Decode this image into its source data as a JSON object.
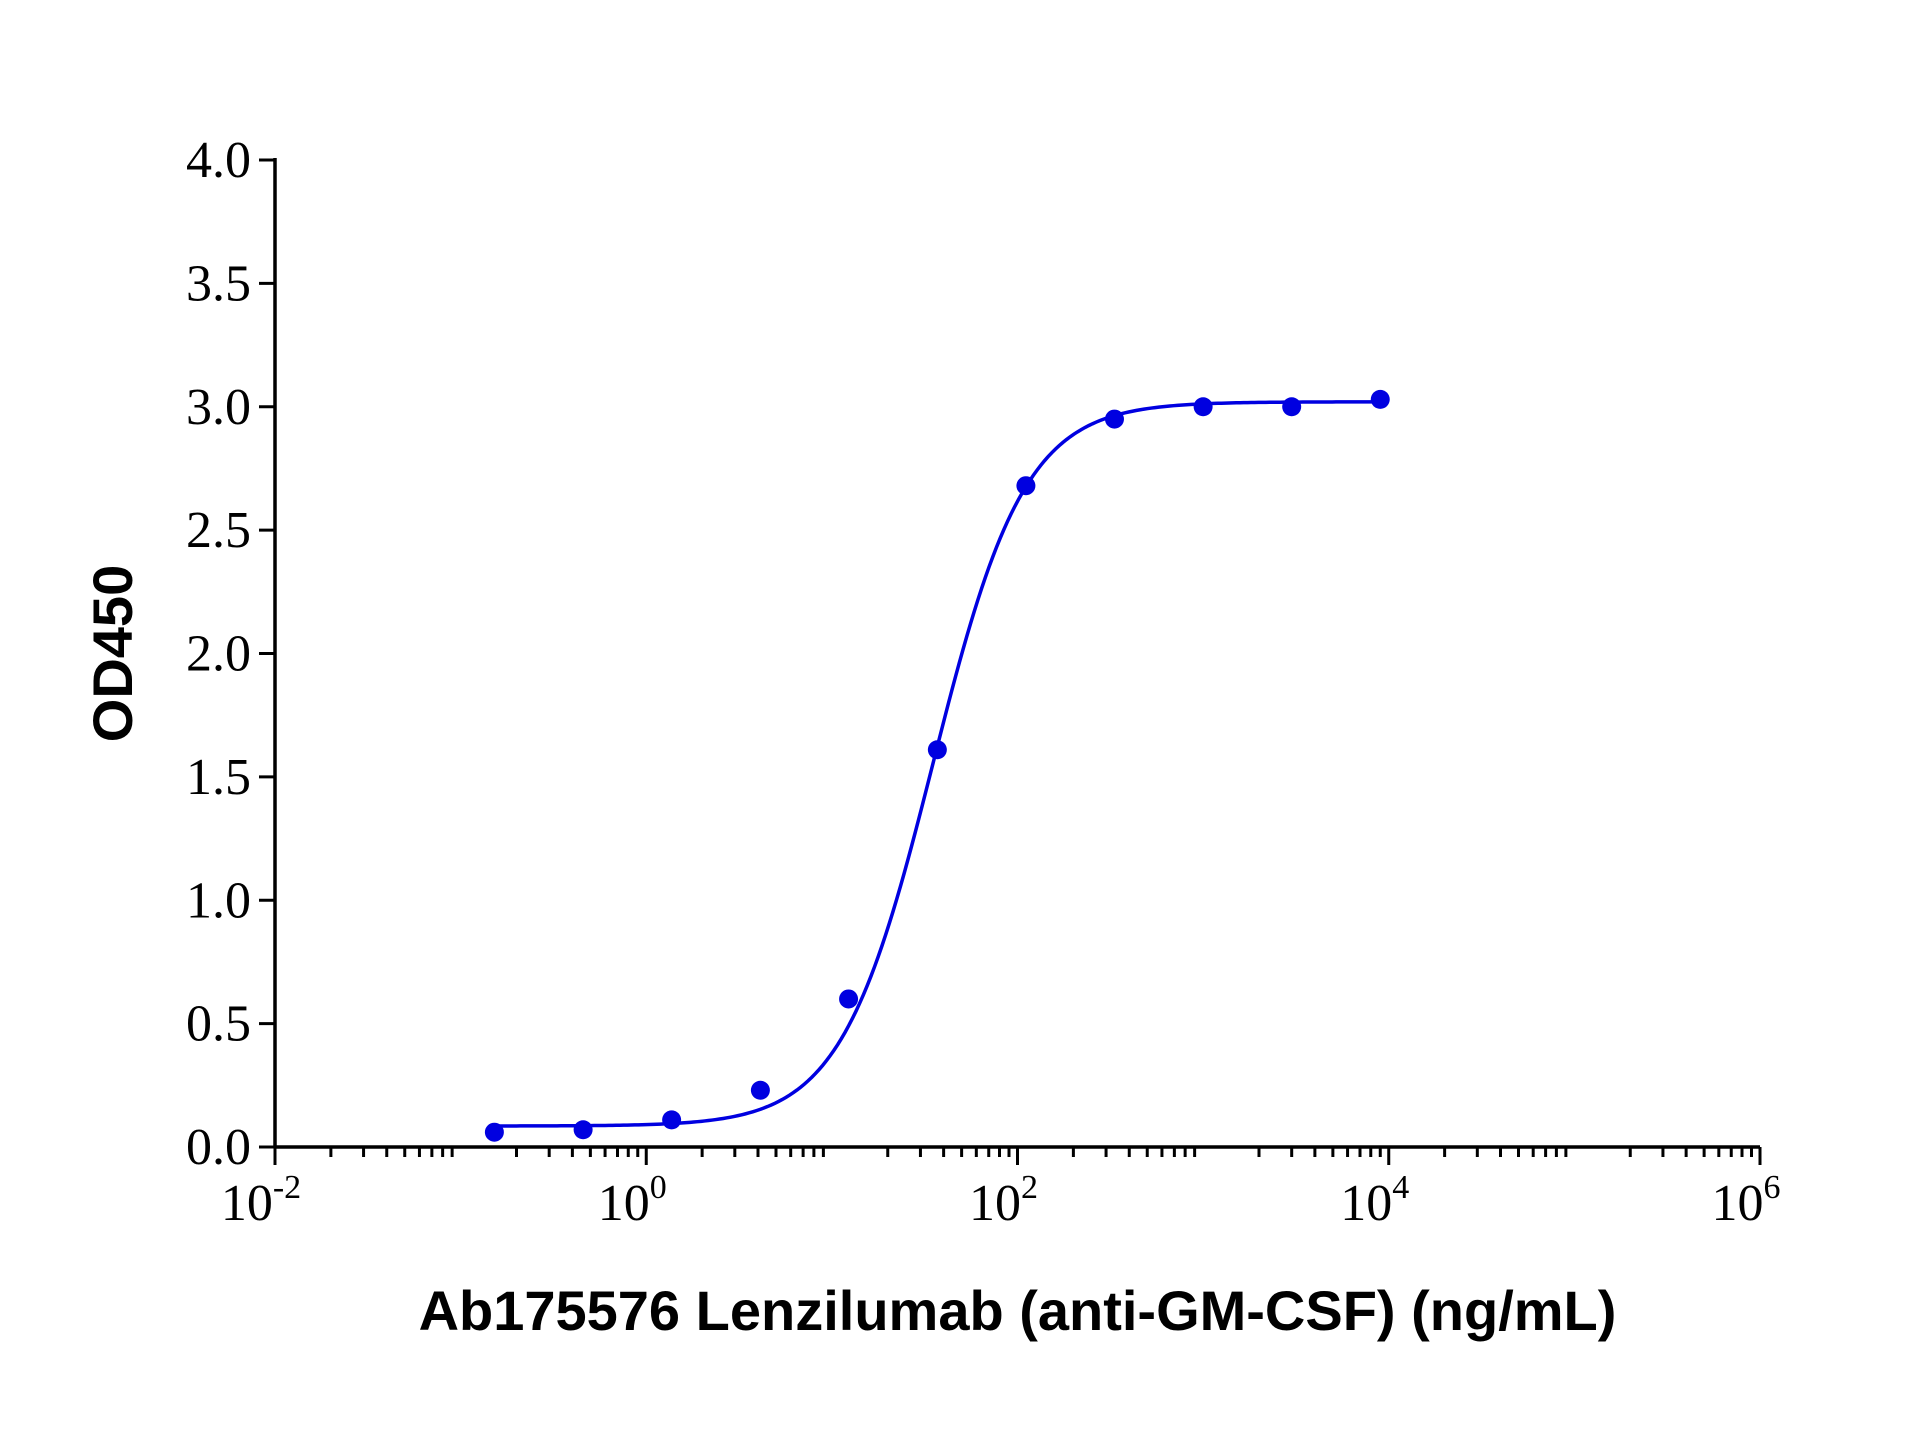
{
  "chart_data": {
    "type": "scatter",
    "title": "",
    "xlabel": "Ab175576 Lenzilumab (anti-GM-CSF) (ng/mL)",
    "ylabel": "OD450",
    "x_scale": "log",
    "xlim": [
      0.01,
      1000000
    ],
    "ylim": [
      0,
      4.0
    ],
    "grid": false,
    "legend": "none",
    "x_ticks": [
      {
        "value": 0.01,
        "base": "10",
        "exp": "-2"
      },
      {
        "value": 1,
        "base": "10",
        "exp": "0"
      },
      {
        "value": 100,
        "base": "10",
        "exp": "2"
      },
      {
        "value": 10000,
        "base": "10",
        "exp": "4"
      },
      {
        "value": 1000000,
        "base": "10",
        "exp": "6"
      }
    ],
    "y_ticks": [
      {
        "value": 0,
        "label": "0.0"
      },
      {
        "value": 0.5,
        "label": "0.5"
      },
      {
        "value": 1.0,
        "label": "1.0"
      },
      {
        "value": 1.5,
        "label": "1.5"
      },
      {
        "value": 2.0,
        "label": "2.0"
      },
      {
        "value": 2.5,
        "label": "2.5"
      },
      {
        "value": 3.0,
        "label": "3.0"
      },
      {
        "value": 3.5,
        "label": "3.5"
      },
      {
        "value": 4.0,
        "label": "4.0"
      }
    ],
    "series": [
      {
        "color": "#0000e0",
        "points": [
          {
            "x": 0.152,
            "y": 0.06
          },
          {
            "x": 0.457,
            "y": 0.07
          },
          {
            "x": 1.37,
            "y": 0.11
          },
          {
            "x": 4.12,
            "y": 0.23
          },
          {
            "x": 12.3,
            "y": 0.6
          },
          {
            "x": 37.0,
            "y": 1.61
          },
          {
            "x": 111,
            "y": 2.68
          },
          {
            "x": 333,
            "y": 2.95
          },
          {
            "x": 1000,
            "y": 3.0
          },
          {
            "x": 3000,
            "y": 3.0
          },
          {
            "x": 9000,
            "y": 3.03
          }
        ],
        "fit": {
          "model": "4PL",
          "bottom": 0.085,
          "top": 3.02,
          "ec50": 35,
          "hill": 1.75,
          "x_range": [
            0.152,
            9000
          ]
        }
      }
    ]
  }
}
